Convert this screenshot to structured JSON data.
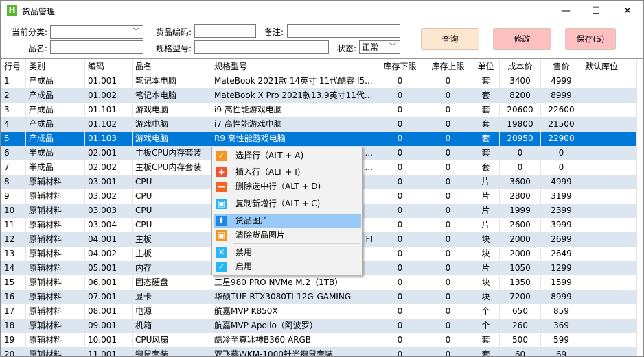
{
  "window": {
    "title": "货品管理",
    "logo": "H"
  },
  "filters": {
    "category_label": "当前分类:",
    "category_value": "",
    "code_label": "货品编码:",
    "code_value": "",
    "remark_label": "备注:",
    "remark_value": "",
    "name_label": "品名:",
    "name_value": "",
    "spec_label": "规格型号:",
    "spec_value": "",
    "status_label": "状态:",
    "status_value": "正常"
  },
  "buttons": {
    "query": "查询",
    "edit": "修改",
    "save": "保存(S)"
  },
  "colors": {
    "query_bg": "#fde6d0",
    "edit_bg": "#fdbfbf",
    "save_bg": "#fdbfbf",
    "selected_row": "#0078d7",
    "alt_row": "#dce6f0",
    "menu_highlight": "#99c9f5"
  },
  "columns": [
    "行号",
    "类别",
    "编码",
    "品名",
    "规格型号",
    "库存下限",
    "库存上限",
    "单位",
    "成本价",
    "售价",
    "默认库位"
  ],
  "rows": [
    [
      "1",
      "产成品",
      "01.001",
      "笔记本电脑",
      "MateBook 2021款 14英寸 11代酷睿 I5...",
      "0",
      "0",
      "套",
      "3400",
      "4999",
      ""
    ],
    [
      "2",
      "产成品",
      "01.002",
      "笔记本电脑",
      "MateBook X Pro 2021款13.9英寸11代...",
      "0",
      "0",
      "套",
      "8200",
      "8999",
      ""
    ],
    [
      "3",
      "产成品",
      "01.101",
      "游戏电脑",
      "i9 高性能游戏电脑",
      "0",
      "0",
      "套",
      "20600",
      "22600",
      ""
    ],
    [
      "4",
      "产成品",
      "01.102",
      "游戏电脑",
      "i7 高性能游戏电脑",
      "0",
      "0",
      "套",
      "19800",
      "21500",
      ""
    ],
    [
      "5",
      "产成品",
      "01.103",
      "游戏电脑",
      "R9 高性能游戏电脑",
      "0",
      "0",
      "套",
      "20950",
      "22900",
      ""
    ],
    [
      "6",
      "半成品",
      "02.001",
      "主板CPU内存套装",
      "...",
      "0",
      "0",
      "套",
      "0",
      "0",
      ""
    ],
    [
      "7",
      "半成品",
      "02.002",
      "主板CPU内存套装",
      "...",
      "0",
      "0",
      "套",
      "0",
      "0",
      ""
    ],
    [
      "8",
      "原辅材料",
      "03.001",
      "CPU",
      "",
      "0",
      "0",
      "片",
      "3600",
      "4999",
      ""
    ],
    [
      "9",
      "原辅材料",
      "03.002",
      "CPU",
      "",
      "0",
      "0",
      "片",
      "2800",
      "3199",
      ""
    ],
    [
      "10",
      "原辅材料",
      "03.003",
      "CPU",
      "",
      "0",
      "0",
      "片",
      "1999",
      "2399",
      ""
    ],
    [
      "11",
      "原辅材料",
      "03.004",
      "CPU",
      "",
      "0",
      "0",
      "片",
      "2600",
      "3999",
      ""
    ],
    [
      "12",
      "原辅材料",
      "04.001",
      "主板",
      "FI",
      "0",
      "0",
      "块",
      "2000",
      "2699",
      ""
    ],
    [
      "13",
      "原辅材料",
      "04.002",
      "主板",
      "",
      "0",
      "0",
      "块",
      "2000",
      "2649",
      ""
    ],
    [
      "14",
      "原辅材料",
      "05.001",
      "内存",
      "",
      "0",
      "0",
      "片",
      "1050",
      "1299",
      ""
    ],
    [
      "15",
      "原辅材料",
      "06.001",
      "固态硬盘",
      "三星980 PRO NVMe M.2（1TB）",
      "0",
      "0",
      "块",
      "1350",
      "1599",
      ""
    ],
    [
      "16",
      "原辅材料",
      "07.001",
      "显卡",
      "华硕TUF-RTX3080TI-12G-GAMING",
      "0",
      "0",
      "块",
      "7200",
      "8999",
      ""
    ],
    [
      "17",
      "原辅材料",
      "08.001",
      "电源",
      "航嘉MVP K850X",
      "0",
      "0",
      "个",
      "650",
      "859",
      ""
    ],
    [
      "18",
      "原辅材料",
      "09.001",
      "机箱",
      "航嘉MVP Apollo（阿波罗）",
      "0",
      "0",
      "个",
      "260",
      "369",
      ""
    ],
    [
      "19",
      "原辅材料",
      "10.001",
      "CPU风扇",
      "酷冷至尊冰神B360 ARGB",
      "0",
      "0",
      "套",
      "500",
      "599",
      ""
    ],
    [
      "20",
      "原辅材料",
      "11.001",
      "键鼠套装",
      "双飞燕WKM-1000针光键鼠套装",
      "0",
      "0",
      "套",
      "60",
      "69",
      ""
    ]
  ],
  "selected_row": 5,
  "context_menu": [
    {
      "label": "选择行（ALT + A)",
      "icon": "check-icon",
      "color": "#f7941d"
    },
    {
      "label": "插入行（ALT + I)",
      "icon": "plus-icon",
      "color": "#f2542d"
    },
    {
      "label": "删除选中行（ALT + D)",
      "icon": "minus-icon",
      "color": "#f26522"
    },
    {
      "label": "复制新增行（ALT + C)",
      "icon": "copy-icon",
      "color": "#29b6f6"
    },
    {
      "label": "货品图片",
      "icon": "upload-icon",
      "color": "#1e88e5",
      "highlighted": true
    },
    {
      "label": "清除货品图片",
      "icon": "clear-image-icon",
      "color": "#f7941d"
    },
    {
      "label": "禁用",
      "icon": "disable-x-icon",
      "color": "#29b6f6"
    },
    {
      "label": "启用",
      "icon": "enable-check-icon",
      "color": "#29b6f6"
    }
  ]
}
